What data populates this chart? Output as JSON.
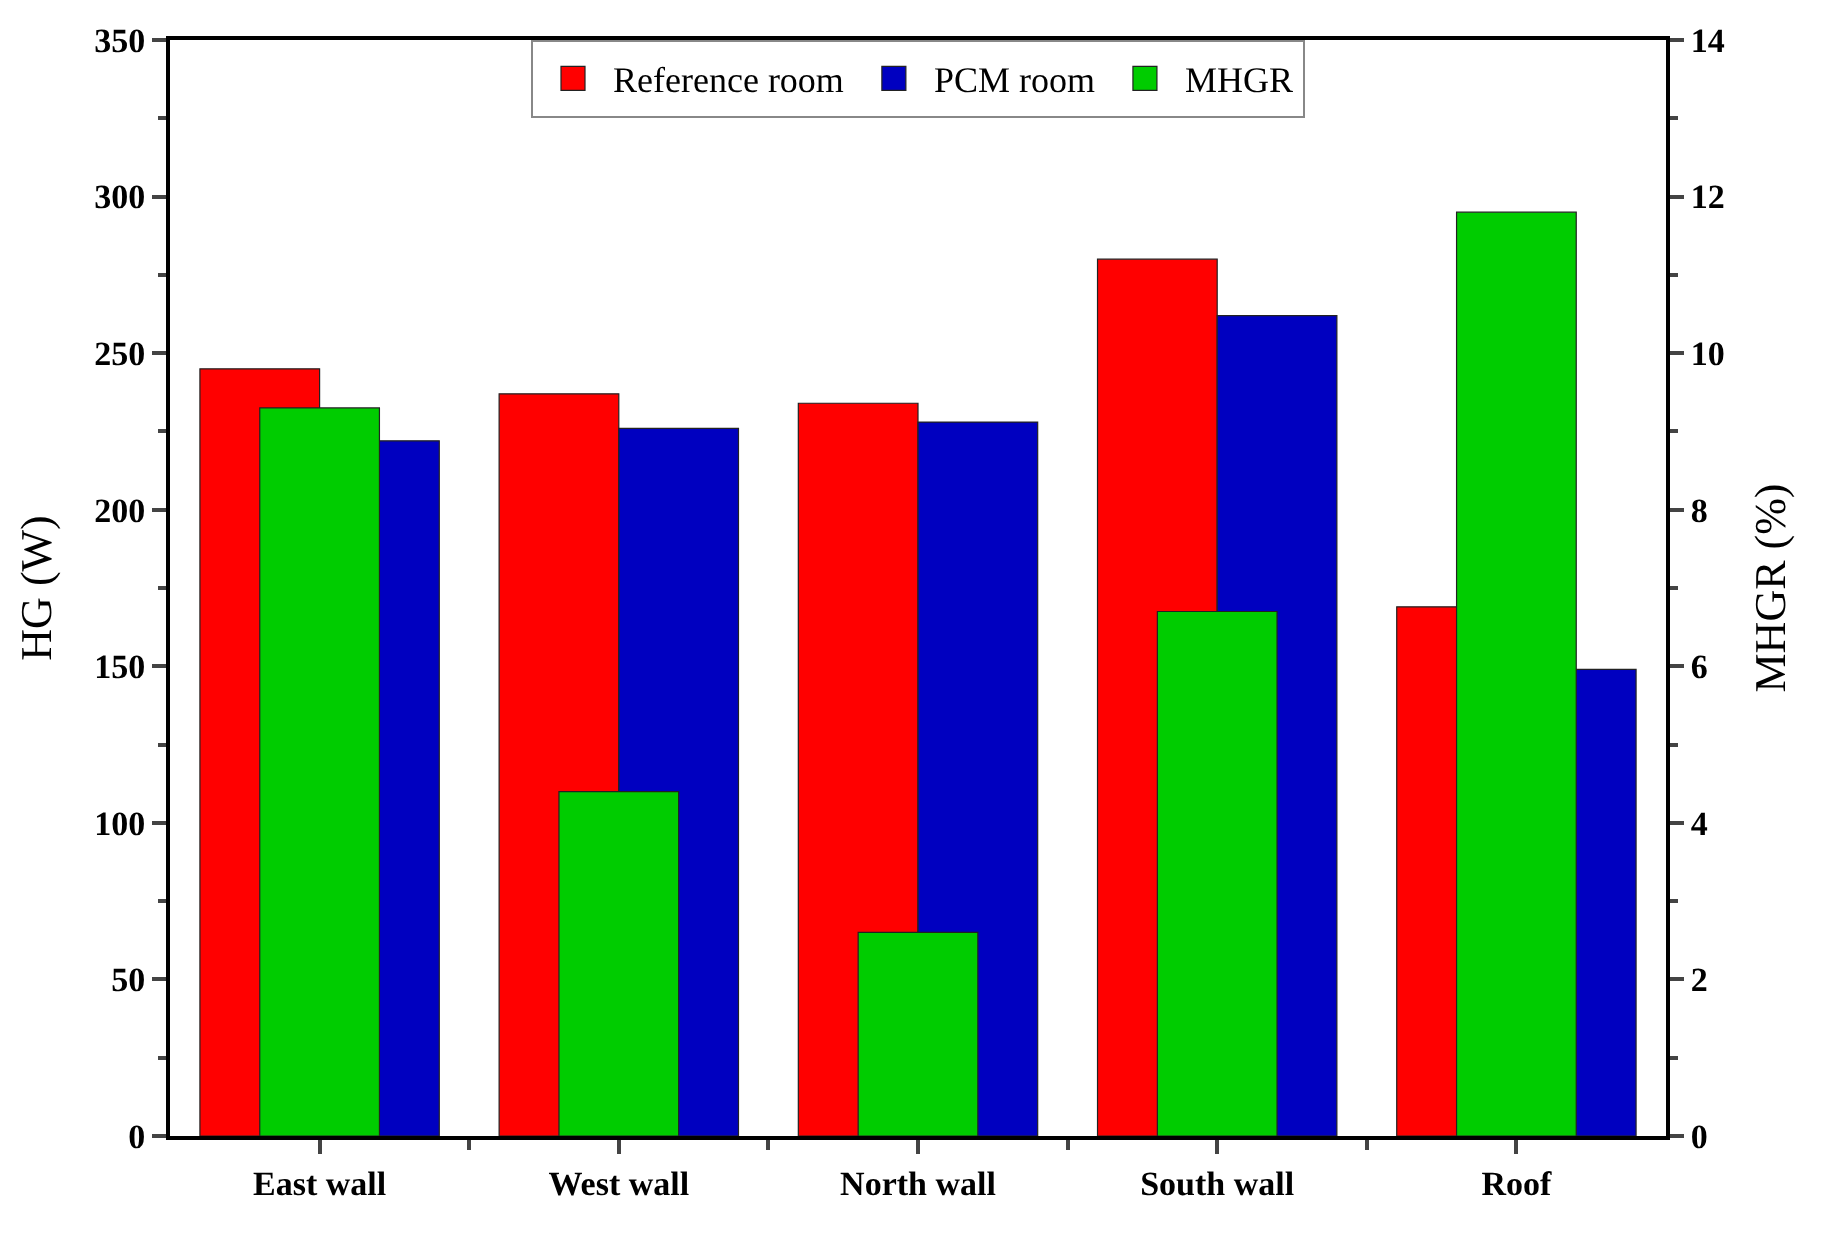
{
  "chart_data": {
    "type": "bar",
    "categories": [
      "East wall",
      "West wall",
      "North wall",
      "South wall",
      "Roof"
    ],
    "ylabel": "HG (W)",
    "y2label": "MHGR (%)",
    "ylim": [
      0,
      350
    ],
    "yticks": [
      0,
      50,
      100,
      150,
      200,
      250,
      300,
      350
    ],
    "y2lim": [
      0,
      14
    ],
    "y2ticks": [
      0,
      2,
      4,
      6,
      8,
      10,
      12,
      14
    ],
    "legend": "top",
    "series": [
      {
        "name": "Reference room",
        "color": "#ff0000",
        "values": [
          245,
          237,
          234,
          280,
          169
        ]
      },
      {
        "name": "PCM room",
        "color": "#0000c0",
        "values": [
          222,
          226,
          228,
          262,
          149
        ]
      },
      {
        "name": "MHGR",
        "color": "#00cc00",
        "axis": "y2",
        "values": [
          9.3,
          4.4,
          2.6,
          6.7,
          11.8
        ]
      }
    ]
  }
}
